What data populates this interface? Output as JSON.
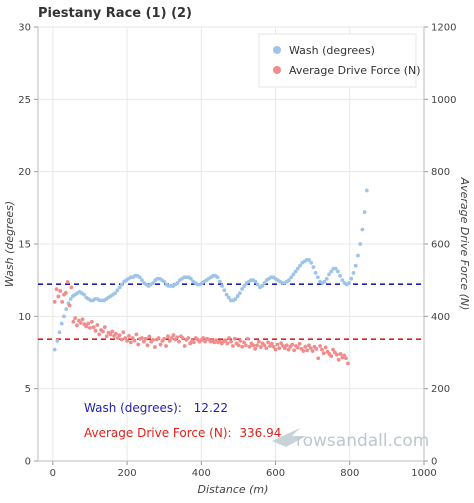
{
  "chart_data": {
    "type": "scatter",
    "title": "Piestany Race (1) (2)",
    "xlabel": "Distance (m)",
    "ylabel": "Wash (degrees)",
    "y2label": "Average Drive Force (N)",
    "xlim": [
      -40,
      1000
    ],
    "ylim": [
      0,
      30
    ],
    "y2lim": [
      0,
      1200
    ],
    "xticks": [
      "0",
      "200",
      "400",
      "600",
      "800",
      "1000"
    ],
    "yticks": [
      "0",
      "5",
      "10",
      "15",
      "20",
      "25",
      "30"
    ],
    "y2ticks": [
      "0",
      "200",
      "400",
      "600",
      "800",
      "1000",
      "1200"
    ],
    "grid": true,
    "legend_position": "top-right",
    "series": [
      {
        "name": "Wash (degrees)",
        "axis": "left",
        "color": "#9ec4e8",
        "mean": 12.22,
        "mean_line_color": "#1f1fb4",
        "points": [
          [
            5,
            7.7
          ],
          [
            12,
            8.3
          ],
          [
            18,
            8.9
          ],
          [
            24,
            9.5
          ],
          [
            30,
            10.0
          ],
          [
            36,
            10.5
          ],
          [
            42,
            10.9
          ],
          [
            48,
            11.2
          ],
          [
            54,
            11.4
          ],
          [
            60,
            11.5
          ],
          [
            66,
            11.6
          ],
          [
            72,
            11.7
          ],
          [
            78,
            11.6
          ],
          [
            84,
            11.5
          ],
          [
            90,
            11.3
          ],
          [
            96,
            11.2
          ],
          [
            102,
            11.1
          ],
          [
            108,
            11.1
          ],
          [
            114,
            11.2
          ],
          [
            120,
            11.2
          ],
          [
            126,
            11.1
          ],
          [
            132,
            11.1
          ],
          [
            138,
            11.1
          ],
          [
            144,
            11.2
          ],
          [
            150,
            11.3
          ],
          [
            156,
            11.4
          ],
          [
            162,
            11.5
          ],
          [
            168,
            11.6
          ],
          [
            174,
            11.8
          ],
          [
            180,
            12.0
          ],
          [
            186,
            12.2
          ],
          [
            192,
            12.4
          ],
          [
            198,
            12.5
          ],
          [
            204,
            12.6
          ],
          [
            210,
            12.7
          ],
          [
            216,
            12.7
          ],
          [
            222,
            12.8
          ],
          [
            228,
            12.8
          ],
          [
            234,
            12.7
          ],
          [
            240,
            12.5
          ],
          [
            246,
            12.3
          ],
          [
            252,
            12.2
          ],
          [
            258,
            12.1
          ],
          [
            264,
            12.2
          ],
          [
            270,
            12.3
          ],
          [
            276,
            12.5
          ],
          [
            282,
            12.6
          ],
          [
            288,
            12.6
          ],
          [
            294,
            12.5
          ],
          [
            300,
            12.4
          ],
          [
            306,
            12.2
          ],
          [
            312,
            12.1
          ],
          [
            318,
            12.1
          ],
          [
            324,
            12.1
          ],
          [
            330,
            12.2
          ],
          [
            336,
            12.3
          ],
          [
            342,
            12.5
          ],
          [
            348,
            12.6
          ],
          [
            354,
            12.7
          ],
          [
            360,
            12.7
          ],
          [
            366,
            12.7
          ],
          [
            372,
            12.6
          ],
          [
            378,
            12.4
          ],
          [
            384,
            12.3
          ],
          [
            390,
            12.2
          ],
          [
            396,
            12.2
          ],
          [
            402,
            12.3
          ],
          [
            408,
            12.4
          ],
          [
            414,
            12.5
          ],
          [
            420,
            12.6
          ],
          [
            426,
            12.7
          ],
          [
            432,
            12.8
          ],
          [
            438,
            12.8
          ],
          [
            444,
            12.7
          ],
          [
            450,
            12.4
          ],
          [
            456,
            12.1
          ],
          [
            462,
            11.8
          ],
          [
            468,
            11.5
          ],
          [
            474,
            11.3
          ],
          [
            480,
            11.1
          ],
          [
            486,
            11.1
          ],
          [
            492,
            11.2
          ],
          [
            498,
            11.4
          ],
          [
            504,
            11.6
          ],
          [
            510,
            11.9
          ],
          [
            516,
            12.1
          ],
          [
            522,
            12.3
          ],
          [
            528,
            12.4
          ],
          [
            534,
            12.5
          ],
          [
            540,
            12.5
          ],
          [
            546,
            12.4
          ],
          [
            552,
            12.2
          ],
          [
            558,
            12.0
          ],
          [
            564,
            12.1
          ],
          [
            570,
            12.3
          ],
          [
            576,
            12.5
          ],
          [
            582,
            12.6
          ],
          [
            588,
            12.7
          ],
          [
            594,
            12.7
          ],
          [
            600,
            12.6
          ],
          [
            606,
            12.5
          ],
          [
            612,
            12.4
          ],
          [
            618,
            12.3
          ],
          [
            624,
            12.3
          ],
          [
            630,
            12.4
          ],
          [
            636,
            12.5
          ],
          [
            642,
            12.7
          ],
          [
            648,
            12.9
          ],
          [
            654,
            13.1
          ],
          [
            660,
            13.3
          ],
          [
            666,
            13.5
          ],
          [
            672,
            13.7
          ],
          [
            678,
            13.8
          ],
          [
            684,
            13.9
          ],
          [
            690,
            13.9
          ],
          [
            696,
            13.7
          ],
          [
            702,
            13.4
          ],
          [
            708,
            13.0
          ],
          [
            714,
            12.7
          ],
          [
            720,
            12.4
          ],
          [
            726,
            12.3
          ],
          [
            732,
            12.4
          ],
          [
            738,
            12.6
          ],
          [
            744,
            12.9
          ],
          [
            750,
            13.1
          ],
          [
            756,
            13.3
          ],
          [
            762,
            13.3
          ],
          [
            768,
            13.1
          ],
          [
            774,
            12.8
          ],
          [
            780,
            12.5
          ],
          [
            786,
            12.3
          ],
          [
            792,
            12.2
          ],
          [
            798,
            12.3
          ],
          [
            804,
            12.6
          ],
          [
            810,
            13.0
          ],
          [
            816,
            13.5
          ],
          [
            822,
            14.2
          ],
          [
            828,
            15.0
          ],
          [
            834,
            16.0
          ],
          [
            840,
            17.2
          ],
          [
            846,
            18.7
          ]
        ]
      },
      {
        "name": "Average Drive Force (N)",
        "axis": "right",
        "color": "#f08c8c",
        "mean": 336.94,
        "mean_line_color": "#e0201a",
        "points": [
          [
            5,
            440
          ],
          [
            10,
            475
          ],
          [
            15,
            455
          ],
          [
            20,
            470
          ],
          [
            25,
            440
          ],
          [
            30,
            460
          ],
          [
            35,
            465
          ],
          [
            40,
            495
          ],
          [
            45,
            430
          ],
          [
            50,
            480
          ],
          [
            55,
            385
          ],
          [
            60,
            395
          ],
          [
            65,
            375
          ],
          [
            70,
            388
          ],
          [
            75,
            382
          ],
          [
            80,
            392
          ],
          [
            85,
            378
          ],
          [
            90,
            372
          ],
          [
            95,
            380
          ],
          [
            100,
            368
          ],
          [
            105,
            385
          ],
          [
            110,
            370
          ],
          [
            115,
            360
          ],
          [
            120,
            376
          ],
          [
            125,
            350
          ],
          [
            130,
            362
          ],
          [
            135,
            358
          ],
          [
            140,
            370
          ],
          [
            145,
            345
          ],
          [
            150,
            355
          ],
          [
            155,
            350
          ],
          [
            160,
            358
          ],
          [
            165,
            346
          ],
          [
            170,
            352
          ],
          [
            175,
            340
          ],
          [
            180,
            348
          ],
          [
            185,
            336
          ],
          [
            190,
            356
          ],
          [
            195,
            340
          ],
          [
            200,
            332
          ],
          [
            205,
            346
          ],
          [
            210,
            328
          ],
          [
            215,
            340
          ],
          [
            220,
            333
          ],
          [
            225,
            350
          ],
          [
            230,
            322
          ],
          [
            235,
            338
          ],
          [
            240,
            340
          ],
          [
            245,
            330
          ],
          [
            250,
            338
          ],
          [
            255,
            320
          ],
          [
            260,
            344
          ],
          [
            265,
            330
          ],
          [
            270,
            335
          ],
          [
            275,
            315
          ],
          [
            280,
            336
          ],
          [
            285,
            340
          ],
          [
            290,
            322
          ],
          [
            295,
            332
          ],
          [
            300,
            338
          ],
          [
            305,
            318
          ],
          [
            310,
            345
          ],
          [
            315,
            332
          ],
          [
            320,
            340
          ],
          [
            325,
            348
          ],
          [
            330,
            336
          ],
          [
            335,
            342
          ],
          [
            340,
            330
          ],
          [
            345,
            345
          ],
          [
            350,
            340
          ],
          [
            355,
            318
          ],
          [
            360,
            335
          ],
          [
            365,
            340
          ],
          [
            370,
            325
          ],
          [
            375,
            332
          ],
          [
            380,
            328
          ],
          [
            385,
            340
          ],
          [
            390,
            336
          ],
          [
            395,
            330
          ],
          [
            400,
            334
          ],
          [
            405,
            340
          ],
          [
            410,
            330
          ],
          [
            415,
            338
          ],
          [
            420,
            336
          ],
          [
            425,
            330
          ],
          [
            430,
            332
          ],
          [
            435,
            328
          ],
          [
            440,
            334
          ],
          [
            445,
            328
          ],
          [
            450,
            330
          ],
          [
            455,
            325
          ],
          [
            460,
            330
          ],
          [
            465,
            334
          ],
          [
            470,
            325
          ],
          [
            475,
            340
          ],
          [
            480,
            330
          ],
          [
            485,
            318
          ],
          [
            490,
            338
          ],
          [
            495,
            325
          ],
          [
            500,
            320
          ],
          [
            505,
            332
          ],
          [
            510,
            316
          ],
          [
            515,
            328
          ],
          [
            520,
            320
          ],
          [
            525,
            338
          ],
          [
            530,
            316
          ],
          [
            535,
            325
          ],
          [
            540,
            320
          ],
          [
            545,
            310
          ],
          [
            550,
            320
          ],
          [
            555,
            330
          ],
          [
            560,
            315
          ],
          [
            565,
            325
          ],
          [
            570,
            320
          ],
          [
            575,
            312
          ],
          [
            580,
            328
          ],
          [
            585,
            318
          ],
          [
            590,
            324
          ],
          [
            595,
            316
          ],
          [
            600,
            308
          ],
          [
            605,
            322
          ],
          [
            610,
            312
          ],
          [
            615,
            326
          ],
          [
            620,
            318
          ],
          [
            625,
            312
          ],
          [
            630,
            320
          ],
          [
            635,
            308
          ],
          [
            640,
            316
          ],
          [
            645,
            322
          ],
          [
            650,
            306
          ],
          [
            655,
            318
          ],
          [
            660,
            314
          ],
          [
            665,
            324
          ],
          [
            670,
            310
          ],
          [
            675,
            304
          ],
          [
            680,
            316
          ],
          [
            685,
            306
          ],
          [
            690,
            320
          ],
          [
            695,
            312
          ],
          [
            700,
            304
          ],
          [
            705,
            316
          ],
          [
            710,
            310
          ],
          [
            715,
            284
          ],
          [
            720,
            318
          ],
          [
            725,
            308
          ],
          [
            730,
            298
          ],
          [
            735,
            314
          ],
          [
            740,
            302
          ],
          [
            745,
            296
          ],
          [
            750,
            290
          ],
          [
            755,
            308
          ],
          [
            760,
            300
          ],
          [
            765,
            294
          ],
          [
            770,
            280
          ],
          [
            775,
            296
          ],
          [
            780,
            286
          ],
          [
            785,
            292
          ],
          [
            790,
            284
          ],
          [
            795,
            270
          ]
        ]
      }
    ],
    "annotations": [
      {
        "label": "Wash (degrees):",
        "value": "12.22",
        "color": "#1f1fb4"
      },
      {
        "label": "Average Drive Force (N):",
        "value": "336.94",
        "color": "#e0201a"
      }
    ],
    "watermark": "rowsandall.com"
  }
}
